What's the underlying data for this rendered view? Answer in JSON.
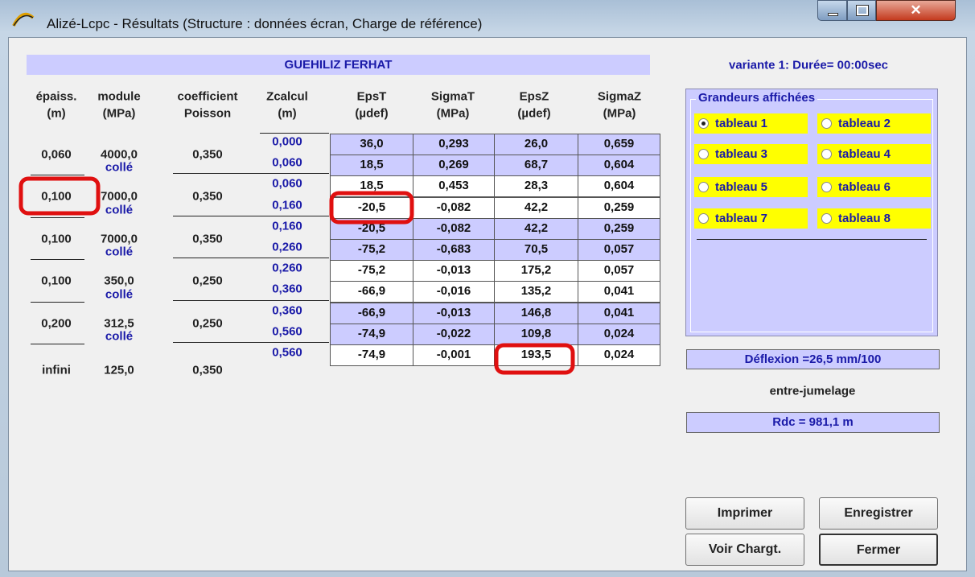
{
  "window": {
    "title": "Alizé-Lcpc - Résultats (Structure : données écran, Charge de référence)"
  },
  "table": {
    "banner": "GUEHILIZ FERHAT",
    "headers": [
      [
        "épaiss.",
        "(m)"
      ],
      [
        "module",
        "(MPa)"
      ],
      [
        "coefficient",
        "Poisson"
      ],
      [
        "Zcalcul",
        "(m)"
      ],
      [
        "EpsT",
        "(µdef)"
      ],
      [
        "SigmaT",
        "(MPa)"
      ],
      [
        "EpsZ",
        "(µdef)"
      ],
      [
        "SigmaZ",
        "(MPa)"
      ]
    ],
    "layers": [
      {
        "thickness": "0,060",
        "modulus": "4000,0",
        "poisson": "0,350",
        "interface": "collé"
      },
      {
        "thickness": "0,100",
        "modulus": "7000,0",
        "poisson": "0,350",
        "interface": "collé"
      },
      {
        "thickness": "0,100",
        "modulus": "7000,0",
        "poisson": "0,350",
        "interface": "collé"
      },
      {
        "thickness": "0,100",
        "modulus": "350,0",
        "poisson": "0,250",
        "interface": "collé"
      },
      {
        "thickness": "0,200",
        "modulus": "312,5",
        "poisson": "0,250",
        "interface": "collé"
      },
      {
        "thickness": "infini",
        "modulus": "125,0",
        "poisson": "0,350"
      }
    ],
    "zcalcul": [
      "0,000",
      "0,060",
      "0,060",
      "0,160",
      "0,160",
      "0,260",
      "0,260",
      "0,360",
      "0,360",
      "0,560",
      "0,560"
    ],
    "rows": [
      [
        "36,0",
        "0,293",
        "26,0",
        "0,659"
      ],
      [
        "18,5",
        "0,269",
        "68,7",
        "0,604"
      ],
      [
        "18,5",
        "0,453",
        "28,3",
        "0,604"
      ],
      [
        "-20,5",
        "-0,082",
        "42,2",
        "0,259"
      ],
      [
        "-20,5",
        "-0,082",
        "42,2",
        "0,259"
      ],
      [
        "-75,2",
        "-0,683",
        "70,5",
        "0,057"
      ],
      [
        "-75,2",
        "-0,013",
        "175,2",
        "0,057"
      ],
      [
        "-66,9",
        "-0,016",
        "135,2",
        "0,041"
      ],
      [
        "-66,9",
        "-0,013",
        "146,8",
        "0,041"
      ],
      [
        "-74,9",
        "-0,022",
        "109,8",
        "0,024"
      ],
      [
        "-74,9",
        "-0,001",
        "193,5",
        "0,024"
      ]
    ]
  },
  "panel": {
    "variant": "variante 1:  Durée= 00:00sec",
    "group_title": "Grandeurs affichées",
    "options": [
      "tableau 1",
      "tableau 2",
      "tableau 3",
      "tableau 4",
      "tableau 5",
      "tableau 6",
      "tableau 7",
      "tableau 8"
    ],
    "deflection": "Déflexion =26,5 mm/100",
    "note": "entre-jumelage",
    "rdc": "Rdc = 981,1 m",
    "buttons": [
      "Imprimer",
      "Enregistrer",
      "Voir Chargt.",
      "Fermer"
    ]
  }
}
